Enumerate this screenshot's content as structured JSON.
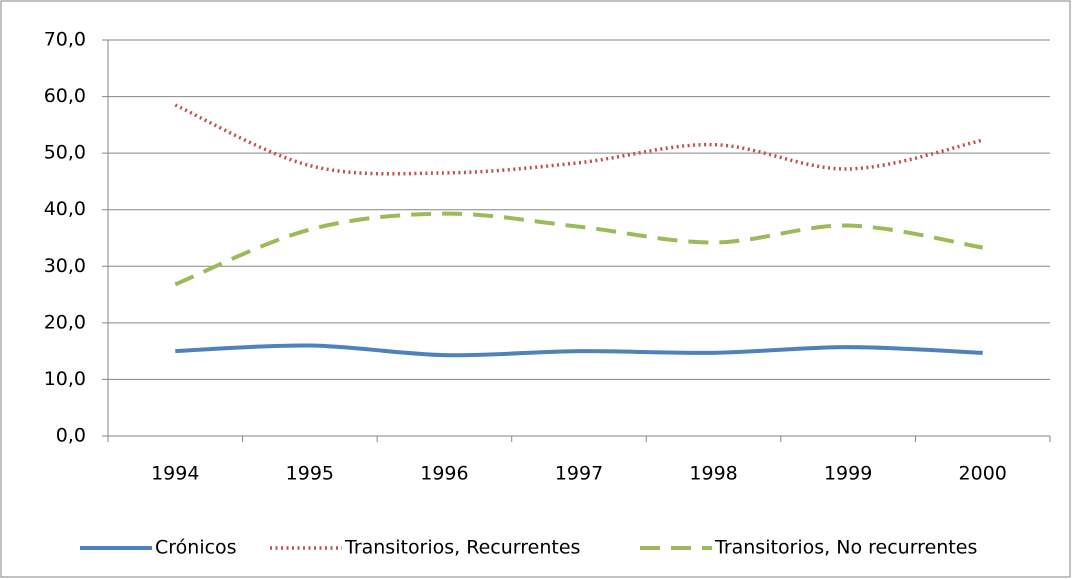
{
  "chart_data": {
    "type": "line",
    "categories": [
      "1994",
      "1995",
      "1996",
      "1997",
      "1998",
      "1999",
      "2000"
    ],
    "series": [
      {
        "name": "Crónicos",
        "color": "#4f81bd",
        "style": "solid",
        "values": [
          15.0,
          16.0,
          14.3,
          15.0,
          14.7,
          15.7,
          14.7
        ]
      },
      {
        "name": "Transitorios, Recurrentes",
        "color": "#c0504d",
        "style": "dotted",
        "values": [
          58.5,
          47.8,
          46.5,
          48.3,
          51.5,
          47.2,
          52.3
        ]
      },
      {
        "name": "Transitorios, No recurrentes",
        "color": "#9bbb59",
        "style": "dashed",
        "values": [
          26.8,
          36.5,
          39.3,
          37.0,
          34.2,
          37.2,
          33.3
        ]
      }
    ],
    "ylim": [
      0,
      70
    ],
    "yticks": [
      {
        "value": 0,
        "label": "0,0"
      },
      {
        "value": 10,
        "label": "10,0"
      },
      {
        "value": 20,
        "label": "20,0"
      },
      {
        "value": 30,
        "label": "30,0"
      },
      {
        "value": 40,
        "label": "40,0"
      },
      {
        "value": 50,
        "label": "50,0"
      },
      {
        "value": 60,
        "label": "60,0"
      },
      {
        "value": 70,
        "label": "70,0"
      }
    ],
    "grid": true,
    "legend": "bottom"
  }
}
